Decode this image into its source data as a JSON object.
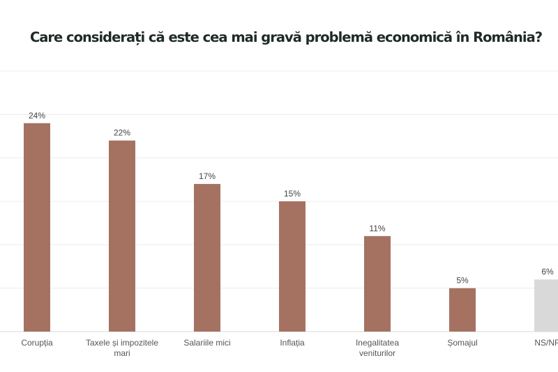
{
  "chart_data": {
    "type": "bar",
    "title": "Care considerați că este cea mai gravă problemă economică în România?",
    "categories": [
      "Corupția",
      "Taxele și impozitele mari",
      "Salariile mici",
      "Inflația",
      "Inegalitatea veniturilor",
      "Șomajul",
      "NS/NR"
    ],
    "category_lines": [
      [
        "Corupția"
      ],
      [
        "Taxele și impozitele",
        "mari"
      ],
      [
        "Salariile mici"
      ],
      [
        "Inflația"
      ],
      [
        "Inegalitatea",
        "veniturilor"
      ],
      [
        "Șomajul"
      ],
      [
        "NS/NR"
      ]
    ],
    "values": [
      24,
      22,
      17,
      15,
      11,
      5,
      6
    ],
    "data_labels": [
      "24%",
      "22%",
      "17%",
      "15%",
      "11%",
      "5%",
      "6%"
    ],
    "bar_colors": [
      "#a57261",
      "#a57261",
      "#a57261",
      "#a57261",
      "#a57261",
      "#a57261",
      "#d9d9d9"
    ],
    "ylim": [
      0,
      30
    ],
    "grid": true,
    "xlabel": "",
    "ylabel": ""
  }
}
